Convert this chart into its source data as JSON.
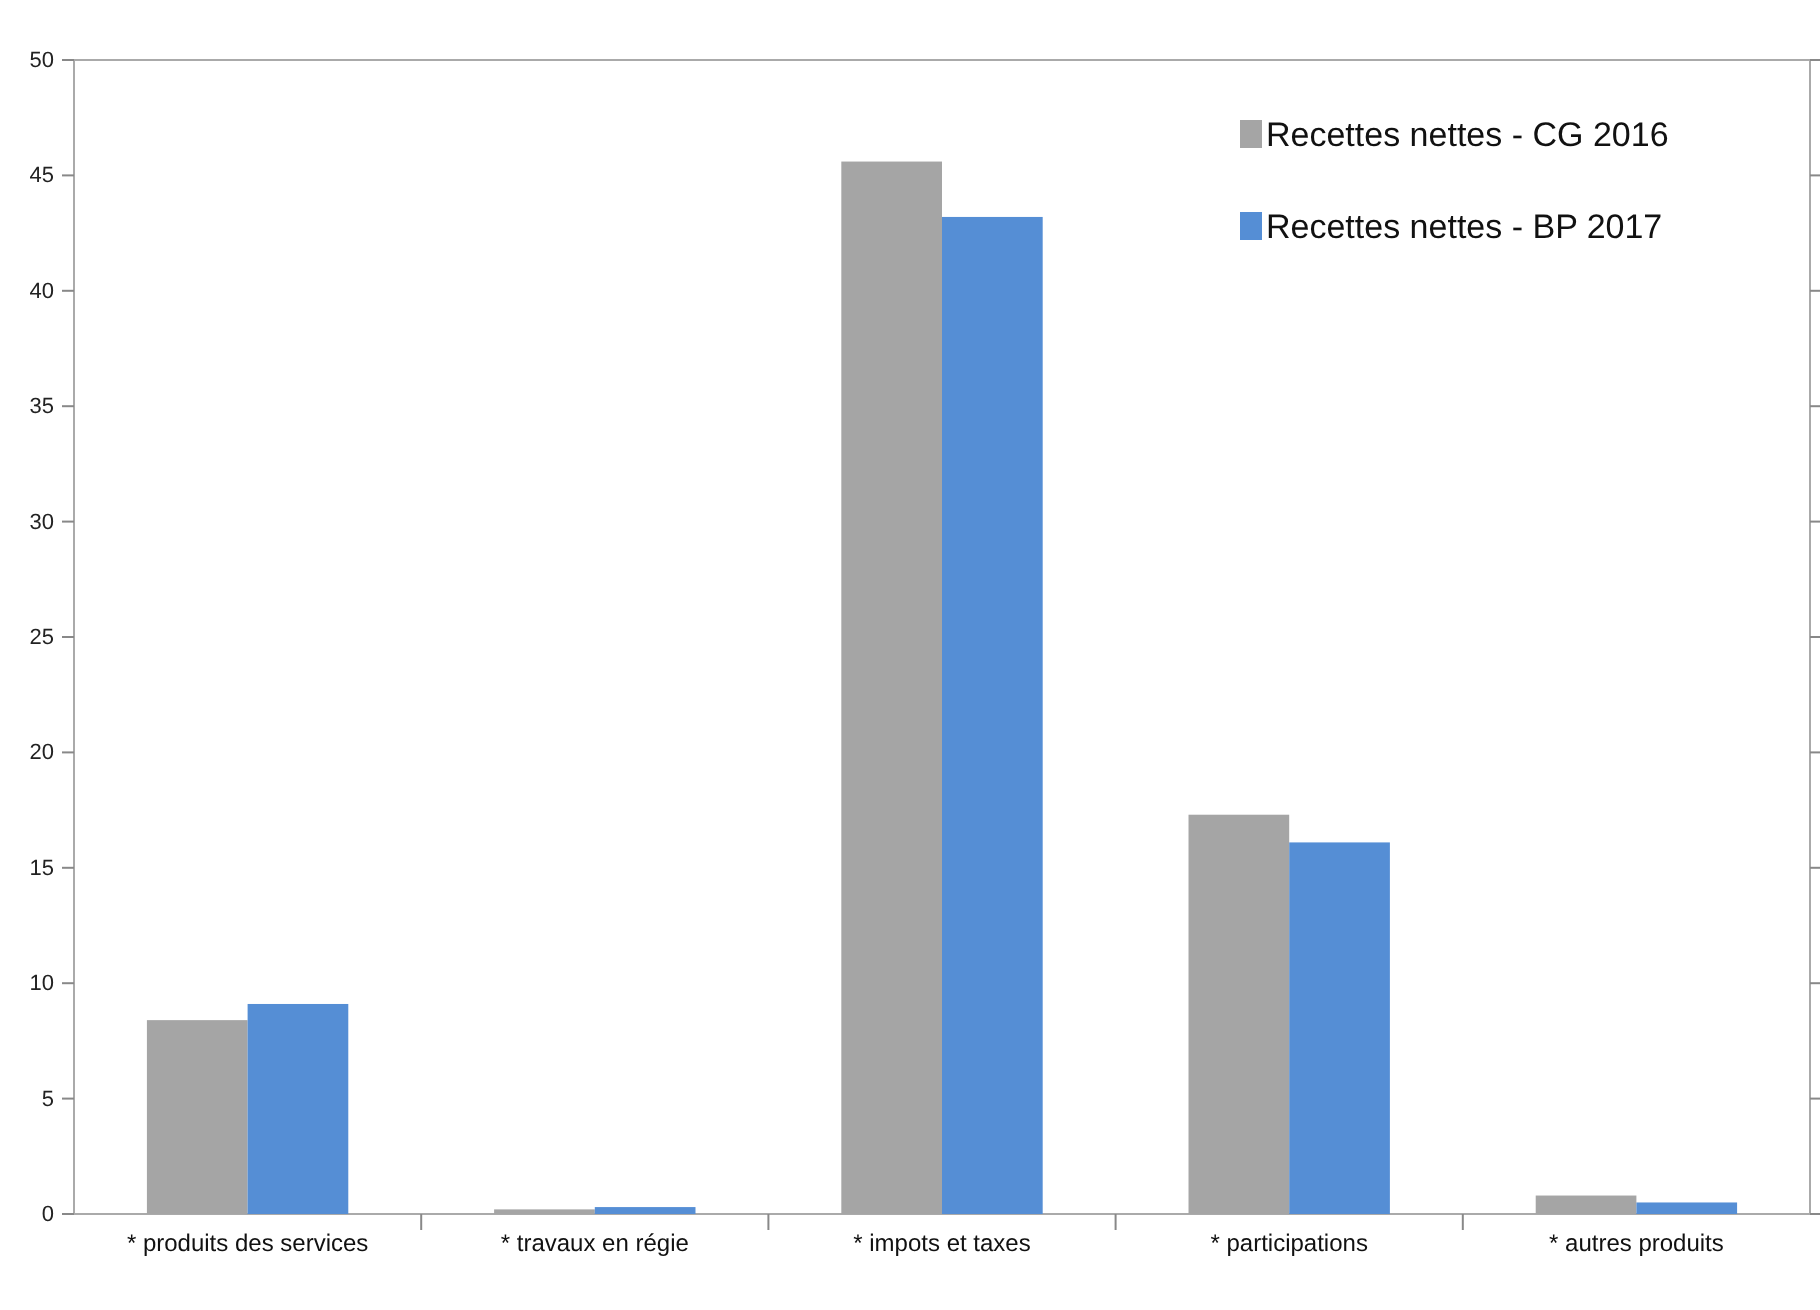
{
  "chart_data": {
    "type": "bar",
    "categories": [
      "* produits des services",
      "* travaux en régie",
      "* impots et taxes",
      "* participations",
      "* autres produits"
    ],
    "series": [
      {
        "name": "Recettes nettes - CG 2016",
        "color": "#a5a5a5",
        "values": [
          8.4,
          0.2,
          45.6,
          17.3,
          0.8
        ]
      },
      {
        "name": "Recettes nettes - BP 2017",
        "color": "#558ed5",
        "values": [
          9.1,
          0.3,
          43.2,
          16.1,
          0.5
        ]
      }
    ],
    "ylim": [
      0,
      50
    ],
    "yticks": [
      0,
      5,
      10,
      15,
      20,
      25,
      30,
      35,
      40,
      45,
      50
    ],
    "grid": false,
    "legend": "top right"
  }
}
